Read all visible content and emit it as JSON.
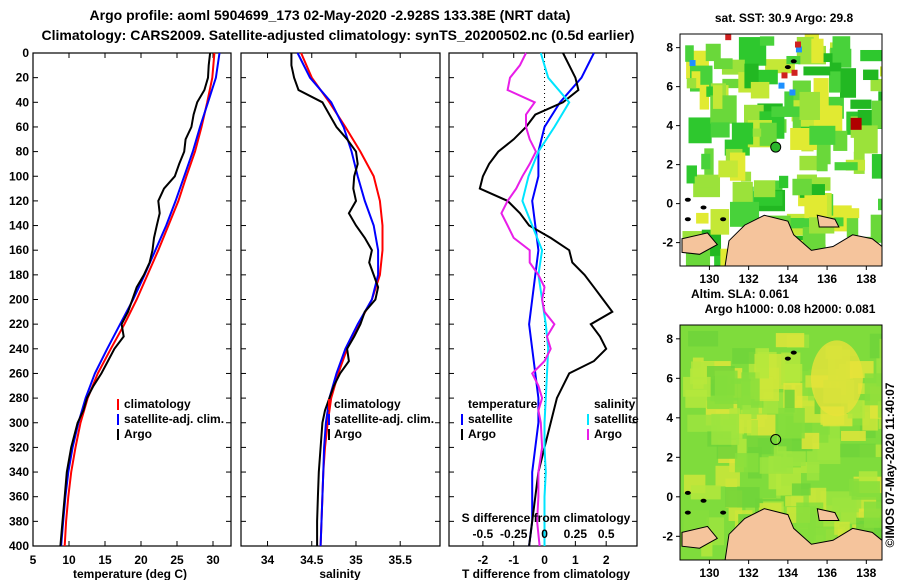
{
  "titles": {
    "line1": "Argo profile: aoml 5904699_173 02-May-2020 -2.928S 133.38E (NRT data)",
    "line2": "Climatology: CARS2009. Satellite-adjusted climatology: synTS_20200502.nc (0.5d earlier)"
  },
  "depth_ticks": [
    "0",
    "20",
    "40",
    "60",
    "80",
    "100",
    "120",
    "140",
    "160",
    "180",
    "200",
    "220",
    "240",
    "260",
    "280",
    "300",
    "320",
    "340",
    "360",
    "380",
    "400"
  ],
  "chart_data": [
    {
      "type": "line",
      "id": "temperature",
      "xlabel": "temperature (deg C)",
      "ylabel": "depth",
      "xlim": [
        5,
        32.5
      ],
      "ylim": [
        400,
        0
      ],
      "xticks": [
        "5",
        "10",
        "15",
        "20",
        "25",
        "30"
      ],
      "legend": [
        "climatology",
        "satellite-adj. clim.",
        "Argo"
      ],
      "series": [
        {
          "name": "climatology",
          "color": "#ff0000",
          "depth": [
            0,
            20,
            40,
            60,
            80,
            100,
            120,
            140,
            160,
            180,
            200,
            220,
            240,
            260,
            280,
            300,
            320,
            340,
            360,
            380,
            400
          ],
          "values": [
            30.2,
            29.9,
            29.2,
            28.4,
            27.5,
            26.3,
            25.2,
            23.8,
            22.4,
            20.9,
            19.4,
            17.7,
            15.8,
            14.0,
            12.6,
            11.6,
            10.9,
            10.3,
            9.9,
            9.6,
            9.4
          ]
        },
        {
          "name": "satellite-adj. clim.",
          "color": "#0000ff",
          "depth": [
            0,
            20,
            40,
            60,
            80,
            100,
            120,
            140,
            160,
            180,
            200,
            220,
            240,
            260,
            280,
            300,
            320,
            340,
            360,
            380,
            400
          ],
          "values": [
            30.9,
            30.4,
            29.3,
            28.2,
            27.2,
            26.0,
            24.8,
            23.5,
            22.0,
            20.5,
            18.9,
            17.1,
            15.3,
            13.6,
            12.3,
            11.3,
            10.5,
            9.9,
            9.5,
            9.2,
            8.9
          ]
        },
        {
          "name": "Argo",
          "color": "#000000",
          "depth": [
            0,
            10,
            20,
            30,
            40,
            50,
            60,
            70,
            80,
            90,
            100,
            110,
            120,
            130,
            140,
            150,
            160,
            170,
            180,
            190,
            200,
            210,
            220,
            230,
            240,
            250,
            260,
            270,
            280,
            290,
            300,
            320,
            340,
            360,
            380,
            400
          ],
          "values": [
            29.6,
            29.4,
            29.3,
            28.8,
            27.8,
            27.3,
            27.0,
            26.2,
            26.0,
            25.3,
            24.7,
            23.2,
            22.4,
            22.6,
            22.2,
            21.8,
            21.6,
            21.2,
            20.4,
            19.4,
            18.8,
            18.2,
            17.3,
            17.6,
            16.3,
            15.4,
            14.5,
            13.4,
            12.5,
            12.0,
            11.2,
            10.3,
            9.7,
            9.4,
            9.1,
            8.8
          ]
        }
      ]
    },
    {
      "type": "line",
      "id": "salinity",
      "xlabel": "salinity",
      "xlim": [
        33.7,
        35.95
      ],
      "ylim": [
        400,
        0
      ],
      "xticks": [
        "34",
        "34.5",
        "35",
        "35.5"
      ],
      "legend": [
        "climatology",
        "satellite-adj. clim.",
        "Argo"
      ],
      "series": [
        {
          "name": "climatology",
          "color": "#ff0000",
          "depth": [
            0,
            20,
            40,
            60,
            80,
            100,
            120,
            140,
            160,
            180,
            200,
            220,
            240,
            260,
            280,
            300,
            320,
            340,
            360,
            380,
            400
          ],
          "values": [
            34.38,
            34.5,
            34.7,
            34.88,
            35.05,
            35.2,
            35.27,
            35.3,
            35.3,
            35.27,
            35.18,
            35.03,
            34.9,
            34.8,
            34.72,
            34.68,
            34.65,
            34.63,
            34.62,
            34.61,
            34.6
          ]
        },
        {
          "name": "satellite-adj. clim.",
          "color": "#0000ff",
          "depth": [
            0,
            20,
            40,
            60,
            80,
            100,
            120,
            140,
            160,
            180,
            200,
            220,
            240,
            260,
            280,
            300,
            320,
            340,
            360,
            380,
            400
          ],
          "values": [
            34.34,
            34.48,
            34.72,
            34.86,
            34.95,
            35.02,
            35.1,
            35.2,
            35.25,
            35.25,
            35.18,
            35.02,
            34.88,
            34.78,
            34.7,
            34.66,
            34.64,
            34.63,
            34.62,
            34.61,
            34.6
          ]
        },
        {
          "name": "Argo",
          "color": "#000000",
          "depth": [
            0,
            10,
            20,
            30,
            40,
            50,
            60,
            70,
            80,
            90,
            100,
            110,
            120,
            130,
            140,
            150,
            160,
            170,
            180,
            190,
            200,
            210,
            220,
            230,
            240,
            250,
            260,
            270,
            280,
            290,
            300,
            320,
            340,
            360,
            380,
            400
          ],
          "values": [
            34.27,
            34.27,
            34.3,
            34.35,
            34.62,
            34.7,
            34.78,
            34.9,
            35.0,
            35.02,
            34.98,
            34.97,
            35.0,
            34.92,
            35.0,
            35.1,
            35.18,
            35.15,
            35.2,
            35.25,
            35.22,
            35.1,
            35.05,
            34.98,
            34.9,
            34.92,
            34.82,
            34.75,
            34.7,
            34.65,
            34.62,
            34.6,
            34.58,
            34.57,
            34.56,
            34.56
          ]
        }
      ]
    },
    {
      "type": "line",
      "id": "difference",
      "xlabel": "T difference from climatology",
      "xlabel_top": "S difference from climatology",
      "xlim": [
        -3.1,
        3.0
      ],
      "ylim": [
        400,
        0
      ],
      "xticks": [
        "-2",
        "-1",
        "0",
        "1",
        "2"
      ],
      "xticks_top": [
        "-0.5",
        "-0.25",
        "0",
        "0.25",
        "0.5"
      ],
      "legend_left": {
        "title": "temperature",
        "items": [
          "satellite",
          "Argo"
        ]
      },
      "legend_right": {
        "title": "salinity",
        "items": [
          "satellite",
          "Argo"
        ]
      },
      "series": [
        {
          "name": "temperature satellite",
          "color": "#0000ff",
          "depth": [
            0,
            20,
            40,
            60,
            80,
            100,
            120,
            140,
            160,
            180,
            200,
            220,
            240,
            260,
            280,
            300,
            320,
            340,
            360,
            380,
            400
          ],
          "values": [
            1.6,
            1.2,
            0.5,
            0.0,
            -0.2,
            -0.2,
            -0.4,
            -0.3,
            -0.2,
            -0.3,
            -0.4,
            -0.5,
            -0.4,
            -0.3,
            -0.2,
            -0.2,
            -0.3,
            -0.4,
            -0.4,
            -0.4,
            -0.5
          ]
        },
        {
          "name": "temperature Argo",
          "color": "#000000",
          "depth": [
            0,
            10,
            20,
            30,
            40,
            50,
            60,
            70,
            80,
            90,
            100,
            110,
            120,
            130,
            140,
            150,
            160,
            170,
            180,
            190,
            200,
            210,
            220,
            230,
            240,
            250,
            260,
            270,
            280,
            290,
            300,
            320,
            340,
            360,
            380,
            400
          ],
          "values": [
            0.6,
            0.8,
            1.0,
            1.1,
            0.6,
            -0.3,
            -0.6,
            -1.0,
            -1.5,
            -1.8,
            -2.0,
            -2.1,
            -1.2,
            -0.8,
            -0.5,
            0.2,
            0.8,
            0.9,
            1.3,
            1.6,
            1.9,
            2.2,
            1.5,
            1.8,
            2.0,
            1.6,
            0.8,
            0.6,
            0.4,
            0.3,
            0.2,
            0.0,
            -0.2,
            -0.3,
            -0.4,
            -0.5
          ]
        },
        {
          "name": "salinity satellite",
          "color": "#00e5ff",
          "depth": [
            0,
            20,
            40,
            60,
            80,
            100,
            120,
            140,
            160,
            180,
            200,
            220,
            240,
            260,
            280,
            300,
            320,
            340,
            360,
            380,
            400
          ],
          "values": [
            -0.03,
            0.03,
            0.2,
            0.08,
            -0.05,
            -0.13,
            -0.18,
            -0.1,
            -0.02,
            -0.05,
            -0.02,
            0.01,
            0.03,
            0.02,
            0.01,
            0.0,
            0.0,
            0.01,
            0.0,
            0.0,
            0.0
          ]
        },
        {
          "name": "salinity Argo",
          "color": "#e81ee8",
          "depth": [
            0,
            10,
            20,
            30,
            40,
            50,
            60,
            70,
            80,
            90,
            100,
            110,
            120,
            130,
            140,
            150,
            160,
            170,
            180,
            190,
            200,
            210,
            220,
            230,
            240,
            250,
            260,
            270,
            280,
            290,
            300,
            320,
            340,
            360,
            380,
            400
          ],
          "values": [
            -0.15,
            -0.2,
            -0.28,
            -0.3,
            -0.08,
            -0.15,
            -0.15,
            -0.12,
            -0.07,
            -0.12,
            -0.18,
            -0.23,
            -0.3,
            -0.35,
            -0.3,
            -0.25,
            -0.12,
            -0.12,
            -0.05,
            0.0,
            -0.02,
            0.0,
            0.08,
            0.02,
            0.05,
            0.0,
            -0.1,
            -0.05,
            -0.02,
            -0.05,
            -0.03,
            -0.02,
            -0.05,
            -0.05,
            -0.06,
            -0.04
          ]
        }
      ]
    },
    {
      "type": "heatmap",
      "id": "sst_map",
      "title": "sat. SST: 30.9 Argo: 29.8",
      "xticks": [
        "130",
        "132",
        "134",
        "136",
        "138"
      ],
      "yticks": [
        "8",
        "6",
        "4",
        "2",
        "0",
        "-2"
      ],
      "xlim": [
        128.5,
        138.8
      ],
      "ylim": [
        -3.2,
        8.7
      ],
      "argo_position": {
        "lon": 133.38,
        "lat": 2.9
      }
    },
    {
      "type": "heatmap",
      "id": "sla_map",
      "title_line1": "Altim. SLA: 0.061",
      "title_line2": "Argo h1000: 0.08 h2000: 0.081",
      "xticks": [
        "130",
        "132",
        "134",
        "136",
        "138"
      ],
      "yticks": [
        "8",
        "6",
        "4",
        "2",
        "0",
        "-2"
      ],
      "xlim": [
        128.5,
        138.8
      ],
      "ylim": [
        -3.2,
        8.7
      ],
      "argo_position": {
        "lon": 133.38,
        "lat": 2.9
      }
    }
  ],
  "credit": "©IMOS 07-May-2020 11:40:07"
}
